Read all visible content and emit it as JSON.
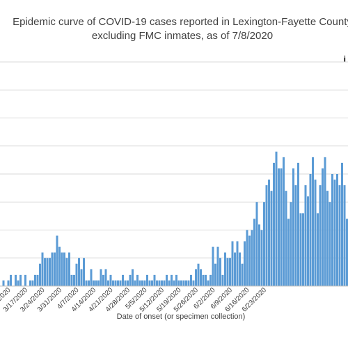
{
  "chart_data": {
    "type": "bar",
    "title_lines": [
      "Epidemic curve of COVID-19 cases reported in Lexington-Fayette County",
      "excluding FMC inmates, as of 7/8/2020"
    ],
    "xlabel": "Date of onset (or specimen collection)",
    "ylabel": "",
    "ylim": [
      0,
      40
    ],
    "grid": true,
    "legend_fragment": "i",
    "tick_labels": [
      "3/10/2020",
      "3/17/2020",
      "3/24/2020",
      "3/31/2020",
      "4/7/2020",
      "4/14/2020",
      "4/21/2020",
      "4/28/2020",
      "5/5/2020",
      "5/12/2020",
      "5/19/2020",
      "5/26/2020",
      "6/2/2020",
      "6/9/2020",
      "6/16/2020",
      "6/23/2020"
    ],
    "first_visible_date": "3/6/2020",
    "series": [
      {
        "values": [
          0,
          1,
          0,
          1,
          2,
          0,
          2,
          1,
          2,
          0,
          2,
          0,
          1,
          1,
          2,
          2,
          4,
          6,
          5,
          5,
          5,
          6,
          6,
          9,
          7,
          6,
          6,
          5,
          6,
          2,
          2,
          4,
          5,
          3,
          5,
          1,
          1,
          3,
          1,
          1,
          1,
          3,
          2,
          3,
          1,
          2,
          1,
          1,
          1,
          1,
          2,
          1,
          1,
          2,
          3,
          1,
          2,
          1,
          1,
          1,
          2,
          1,
          1,
          2,
          1,
          1,
          1,
          1,
          2,
          1,
          2,
          1,
          2,
          1,
          1,
          1,
          1,
          1,
          2,
          1,
          3,
          4,
          3,
          2,
          2,
          1,
          2,
          7,
          4,
          7,
          5,
          2,
          6,
          5,
          5,
          8,
          6,
          8,
          6,
          4,
          8,
          10,
          9,
          10,
          12,
          15,
          11,
          10,
          15,
          18,
          19,
          17,
          22,
          24,
          21,
          21,
          23,
          17,
          12,
          15,
          21,
          18,
          22,
          13,
          13,
          18,
          16,
          20,
          23,
          19,
          13,
          18,
          21,
          23,
          17,
          15,
          20,
          19,
          20,
          18,
          22,
          18,
          12,
          15,
          20,
          21
        ]
      }
    ]
  }
}
